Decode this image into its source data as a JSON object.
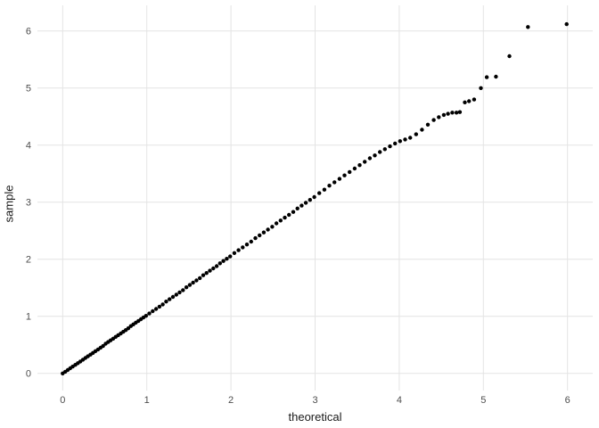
{
  "chart_data": {
    "type": "scatter",
    "title": "",
    "xlabel": "theoretical",
    "ylabel": "sample",
    "x_ticks": [
      0,
      1,
      2,
      3,
      4,
      5,
      6
    ],
    "y_ticks": [
      0,
      1,
      2,
      3,
      4,
      5,
      6
    ],
    "xlim": [
      -0.3,
      6.3
    ],
    "ylim": [
      -0.3,
      6.45
    ],
    "grid": "major-only",
    "legend": "none",
    "background_color": "#ffffff",
    "grid_color": "#e4e4e4",
    "point_color": "#000000",
    "point_radius_px": 2.2,
    "tick_label_color": "#4d4d4d",
    "axis_title_color": "#1a1a1a",
    "points": [
      [
        0.0,
        0.0
      ],
      [
        0.03,
        0.03
      ],
      [
        0.06,
        0.06
      ],
      [
        0.09,
        0.09
      ],
      [
        0.12,
        0.12
      ],
      [
        0.15,
        0.15
      ],
      [
        0.18,
        0.18
      ],
      [
        0.21,
        0.21
      ],
      [
        0.24,
        0.24
      ],
      [
        0.27,
        0.27
      ],
      [
        0.3,
        0.3
      ],
      [
        0.33,
        0.33
      ],
      [
        0.36,
        0.36
      ],
      [
        0.39,
        0.39
      ],
      [
        0.42,
        0.42
      ],
      [
        0.45,
        0.45
      ],
      [
        0.48,
        0.48
      ],
      [
        0.51,
        0.52
      ],
      [
        0.54,
        0.55
      ],
      [
        0.57,
        0.58
      ],
      [
        0.6,
        0.61
      ],
      [
        0.63,
        0.64
      ],
      [
        0.66,
        0.67
      ],
      [
        0.69,
        0.7
      ],
      [
        0.72,
        0.73
      ],
      [
        0.75,
        0.76
      ],
      [
        0.78,
        0.79
      ],
      [
        0.81,
        0.83
      ],
      [
        0.84,
        0.86
      ],
      [
        0.87,
        0.89
      ],
      [
        0.9,
        0.92
      ],
      [
        0.93,
        0.95
      ],
      [
        0.96,
        0.98
      ],
      [
        0.99,
        1.01
      ],
      [
        1.03,
        1.05
      ],
      [
        1.07,
        1.09
      ],
      [
        1.11,
        1.13
      ],
      [
        1.15,
        1.17
      ],
      [
        1.19,
        1.21
      ],
      [
        1.23,
        1.26
      ],
      [
        1.27,
        1.3
      ],
      [
        1.31,
        1.34
      ],
      [
        1.35,
        1.38
      ],
      [
        1.39,
        1.42
      ],
      [
        1.43,
        1.46
      ],
      [
        1.47,
        1.51
      ],
      [
        1.51,
        1.55
      ],
      [
        1.55,
        1.59
      ],
      [
        1.59,
        1.63
      ],
      [
        1.63,
        1.67
      ],
      [
        1.67,
        1.72
      ],
      [
        1.71,
        1.76
      ],
      [
        1.75,
        1.8
      ],
      [
        1.79,
        1.84
      ],
      [
        1.83,
        1.88
      ],
      [
        1.87,
        1.93
      ],
      [
        1.91,
        1.97
      ],
      [
        1.95,
        2.01
      ],
      [
        1.99,
        2.05
      ],
      [
        2.04,
        2.11
      ],
      [
        2.09,
        2.16
      ],
      [
        2.14,
        2.21
      ],
      [
        2.19,
        2.26
      ],
      [
        2.24,
        2.31
      ],
      [
        2.29,
        2.37
      ],
      [
        2.34,
        2.42
      ],
      [
        2.39,
        2.47
      ],
      [
        2.44,
        2.52
      ],
      [
        2.49,
        2.57
      ],
      [
        2.54,
        2.63
      ],
      [
        2.59,
        2.68
      ],
      [
        2.64,
        2.73
      ],
      [
        2.69,
        2.78
      ],
      [
        2.74,
        2.83
      ],
      [
        2.79,
        2.89
      ],
      [
        2.84,
        2.94
      ],
      [
        2.89,
        2.99
      ],
      [
        2.94,
        3.04
      ],
      [
        2.99,
        3.09
      ],
      [
        3.05,
        3.16
      ],
      [
        3.11,
        3.22
      ],
      [
        3.17,
        3.29
      ],
      [
        3.23,
        3.35
      ],
      [
        3.29,
        3.41
      ],
      [
        3.35,
        3.47
      ],
      [
        3.41,
        3.53
      ],
      [
        3.47,
        3.59
      ],
      [
        3.53,
        3.65
      ],
      [
        3.59,
        3.71
      ],
      [
        3.65,
        3.77
      ],
      [
        3.71,
        3.82
      ],
      [
        3.77,
        3.88
      ],
      [
        3.83,
        3.93
      ],
      [
        3.89,
        3.98
      ],
      [
        3.95,
        4.03
      ],
      [
        4.01,
        4.07
      ],
      [
        4.07,
        4.1
      ],
      [
        4.13,
        4.13
      ],
      [
        4.2,
        4.19
      ],
      [
        4.27,
        4.27
      ],
      [
        4.34,
        4.36
      ],
      [
        4.41,
        4.44
      ],
      [
        4.47,
        4.49
      ],
      [
        4.53,
        4.53
      ],
      [
        4.58,
        4.55
      ],
      [
        4.63,
        4.57
      ],
      [
        4.68,
        4.57
      ],
      [
        4.72,
        4.58
      ],
      [
        4.78,
        4.75
      ],
      [
        4.83,
        4.77
      ],
      [
        4.89,
        4.8
      ],
      [
        4.97,
        5.0
      ],
      [
        5.04,
        5.19
      ],
      [
        5.15,
        5.2
      ],
      [
        5.31,
        5.56
      ],
      [
        5.53,
        6.07
      ],
      [
        5.99,
        6.12
      ]
    ]
  }
}
